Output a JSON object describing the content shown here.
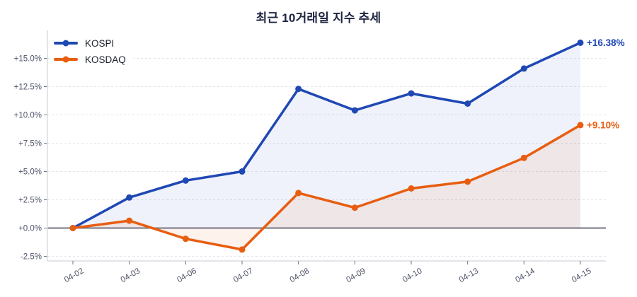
{
  "title": "최근 10거래일 지수 추세",
  "legend": {
    "position": "top-left",
    "items": [
      {
        "label": "KOSPI"
      },
      {
        "label": "KOSDAQ"
      }
    ]
  },
  "chart_data": {
    "type": "line",
    "title": "최근 10거래일 지수 추세",
    "x": [
      "04-02",
      "04-03",
      "04-06",
      "04-07",
      "04-08",
      "04-09",
      "04-10",
      "04-13",
      "04-14",
      "04-15"
    ],
    "series": [
      {
        "name": "KOSPI",
        "color": "#1f48b4",
        "fill_color": "rgba(32,72,180,0.07)",
        "values": [
          0.0,
          2.7,
          4.2,
          5.0,
          12.3,
          10.4,
          11.9,
          11.0,
          14.1,
          16.38
        ],
        "end_label": "+16.38%"
      },
      {
        "name": "KOSDAQ",
        "color": "#e85d0f",
        "fill_color": "rgba(233,93,15,0.08)",
        "values": [
          0.0,
          0.65,
          -0.95,
          -1.9,
          3.1,
          1.8,
          3.5,
          4.1,
          6.2,
          9.1
        ],
        "end_label": "+9.10%"
      }
    ],
    "yticks": [
      {
        "value": 15,
        "label": "+15.0%"
      },
      {
        "value": 12.5,
        "label": "+12.5%"
      },
      {
        "value": 10,
        "label": "+10.0%"
      },
      {
        "value": 7.5,
        "label": "+7.5%"
      },
      {
        "value": 5,
        "label": "+5.0%"
      },
      {
        "value": 2.5,
        "label": "+2.5%"
      },
      {
        "value": 0,
        "label": "+0.0%"
      },
      {
        "value": -2.5,
        "label": "-2.5%"
      }
    ],
    "ylim": [
      -3.4,
      17.4
    ],
    "grid": "horizontal-dashed",
    "zero_line": true,
    "legend_position": "top-left",
    "xlabel": "",
    "ylabel": ""
  },
  "colors": {
    "title": "#1d2440",
    "tick_label": "#4d5468",
    "grid": "#e4e4ea",
    "axis": "#d9dbe2",
    "tick_mark": "#6e7380",
    "zero_line": "#74747f",
    "background": "#ffffff"
  }
}
